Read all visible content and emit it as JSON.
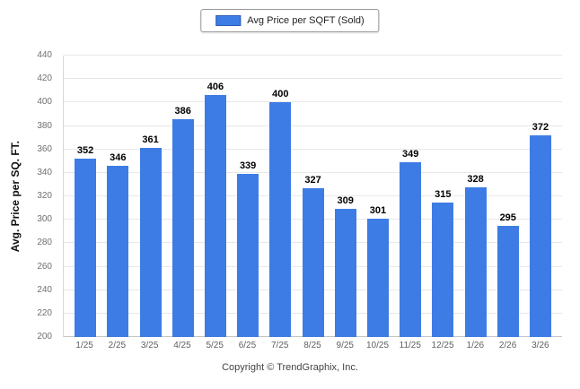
{
  "chart_data": {
    "type": "bar",
    "title": "",
    "legend": "Avg Price per SQFT (Sold)",
    "legend_position": "top-center",
    "ylabel": "Avg. Price per SQ. FT.",
    "xlabel": "",
    "categories": [
      "1/25",
      "2/25",
      "3/25",
      "4/25",
      "5/25",
      "6/25",
      "7/25",
      "8/25",
      "9/25",
      "10/25",
      "11/25",
      "12/25",
      "1/26",
      "2/26",
      "3/26"
    ],
    "values": [
      352,
      346,
      361,
      386,
      406,
      339,
      400,
      327,
      309,
      301,
      349,
      315,
      328,
      295,
      372
    ],
    "ylim": [
      200,
      440
    ],
    "yticks": [
      200,
      220,
      240,
      260,
      280,
      300,
      320,
      340,
      360,
      380,
      400,
      420,
      440
    ],
    "grid": "horizontal",
    "bar_color": "#3d7ce4",
    "footer": "Copyright © TrendGraphix, Inc."
  }
}
